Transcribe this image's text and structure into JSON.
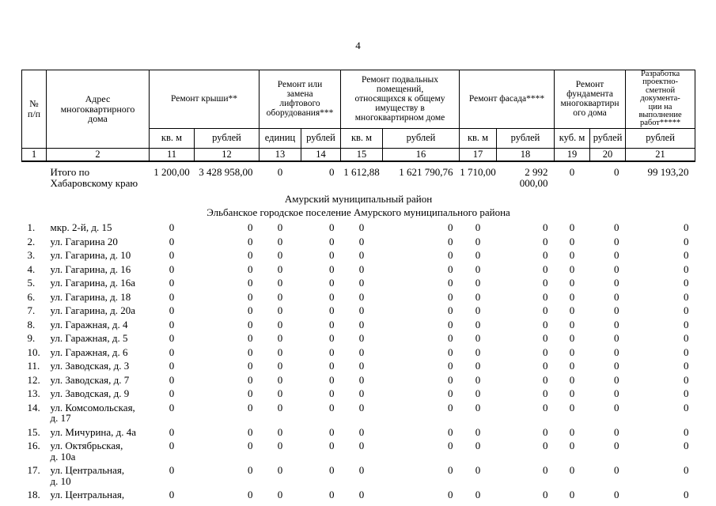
{
  "page_number": "4",
  "table": {
    "header": {
      "num_label": "№\nп/п",
      "address_label": "Адрес\nмногоквартирного\nдома",
      "groups": [
        {
          "label": "Ремонт крыши**",
          "span": 2
        },
        {
          "label": "Ремонт или\nзамена\nлифтового\nоборудования***",
          "span": 2
        },
        {
          "label": "Ремонт подвальных\nпомещений,\nотносящихся к общему\nимуществу в\nмногоквартирном доме",
          "span": 2
        },
        {
          "label": "Ремонт фасада****",
          "span": 2
        },
        {
          "label": "Ремонт\nфундамента\nмногоквартирн\nого дома",
          "span": 2
        },
        {
          "label": "Разработка\nпроектно-\nсметной\nдокумента-\nции на\nвыполнение\nработ*****",
          "span": 1
        }
      ],
      "units": [
        "кв. м",
        "рублей",
        "единиц",
        "рублей",
        "кв. м",
        "рублей",
        "кв. м",
        "рублей",
        "куб. м",
        "рублей",
        "рублей"
      ],
      "column_numbers": [
        "1",
        "2",
        "11",
        "12",
        "13",
        "14",
        "15",
        "16",
        "17",
        "18",
        "19",
        "20",
        "21"
      ]
    },
    "summary": {
      "label": "Итого по\nХабаровскому краю",
      "values": [
        "1 200,00",
        "3 428 958,00",
        "0",
        "0",
        "1 612,88",
        "1 621 790,76",
        "1 710,00",
        "2 992 000,00",
        "0",
        "0",
        "99 193,20"
      ]
    },
    "sections": [
      "Амурский муниципальный район",
      "Эльбанское городское поселение Амурского муниципального района"
    ],
    "rows": [
      {
        "num": "1.",
        "address": "мкр. 2-й, д. 15",
        "values": [
          "0",
          "0",
          "0",
          "0",
          "0",
          "0",
          "0",
          "0",
          "0",
          "0",
          "0"
        ]
      },
      {
        "num": "2.",
        "address": "ул. Гагарина 20",
        "values": [
          "0",
          "0",
          "0",
          "0",
          "0",
          "0",
          "0",
          "0",
          "0",
          "0",
          "0"
        ]
      },
      {
        "num": "3.",
        "address": "ул. Гагарина, д. 10",
        "values": [
          "0",
          "0",
          "0",
          "0",
          "0",
          "0",
          "0",
          "0",
          "0",
          "0",
          "0"
        ]
      },
      {
        "num": "4.",
        "address": "ул. Гагарина, д. 16",
        "values": [
          "0",
          "0",
          "0",
          "0",
          "0",
          "0",
          "0",
          "0",
          "0",
          "0",
          "0"
        ]
      },
      {
        "num": "5.",
        "address": "ул. Гагарина, д. 16а",
        "values": [
          "0",
          "0",
          "0",
          "0",
          "0",
          "0",
          "0",
          "0",
          "0",
          "0",
          "0"
        ]
      },
      {
        "num": "6.",
        "address": "ул. Гагарина, д. 18",
        "values": [
          "0",
          "0",
          "0",
          "0",
          "0",
          "0",
          "0",
          "0",
          "0",
          "0",
          "0"
        ]
      },
      {
        "num": "7.",
        "address": "ул. Гагарина, д. 20а",
        "values": [
          "0",
          "0",
          "0",
          "0",
          "0",
          "0",
          "0",
          "0",
          "0",
          "0",
          "0"
        ]
      },
      {
        "num": "8.",
        "address": "ул. Гаражная, д. 4",
        "values": [
          "0",
          "0",
          "0",
          "0",
          "0",
          "0",
          "0",
          "0",
          "0",
          "0",
          "0"
        ]
      },
      {
        "num": "9.",
        "address": "ул. Гаражная, д. 5",
        "values": [
          "0",
          "0",
          "0",
          "0",
          "0",
          "0",
          "0",
          "0",
          "0",
          "0",
          "0"
        ]
      },
      {
        "num": "10.",
        "address": "ул. Гаражная, д. 6",
        "values": [
          "0",
          "0",
          "0",
          "0",
          "0",
          "0",
          "0",
          "0",
          "0",
          "0",
          "0"
        ]
      },
      {
        "num": "11.",
        "address": "ул. Заводская, д. 3",
        "values": [
          "0",
          "0",
          "0",
          "0",
          "0",
          "0",
          "0",
          "0",
          "0",
          "0",
          "0"
        ]
      },
      {
        "num": "12.",
        "address": "ул. Заводская, д. 7",
        "values": [
          "0",
          "0",
          "0",
          "0",
          "0",
          "0",
          "0",
          "0",
          "0",
          "0",
          "0"
        ]
      },
      {
        "num": "13.",
        "address": "ул. Заводская, д. 9",
        "values": [
          "0",
          "0",
          "0",
          "0",
          "0",
          "0",
          "0",
          "0",
          "0",
          "0",
          "0"
        ]
      },
      {
        "num": "14.",
        "address": "ул. Комсомольская,\nд. 17",
        "values": [
          "0",
          "0",
          "0",
          "0",
          "0",
          "0",
          "0",
          "0",
          "0",
          "0",
          "0"
        ]
      },
      {
        "num": "15.",
        "address": "ул. Мичурина, д. 4а",
        "values": [
          "0",
          "0",
          "0",
          "0",
          "0",
          "0",
          "0",
          "0",
          "0",
          "0",
          "0"
        ]
      },
      {
        "num": "16.",
        "address": "ул. Октябрьская,\nд. 10а",
        "values": [
          "0",
          "0",
          "0",
          "0",
          "0",
          "0",
          "0",
          "0",
          "0",
          "0",
          "0"
        ]
      },
      {
        "num": "17.",
        "address": "ул. Центральная,\nд. 10",
        "values": [
          "0",
          "0",
          "0",
          "0",
          "0",
          "0",
          "0",
          "0",
          "0",
          "0",
          "0"
        ]
      },
      {
        "num": "18.",
        "address": "ул. Центральная,",
        "values": [
          "0",
          "0",
          "0",
          "0",
          "0",
          "0",
          "0",
          "0",
          "0",
          "0",
          "0"
        ]
      }
    ]
  }
}
